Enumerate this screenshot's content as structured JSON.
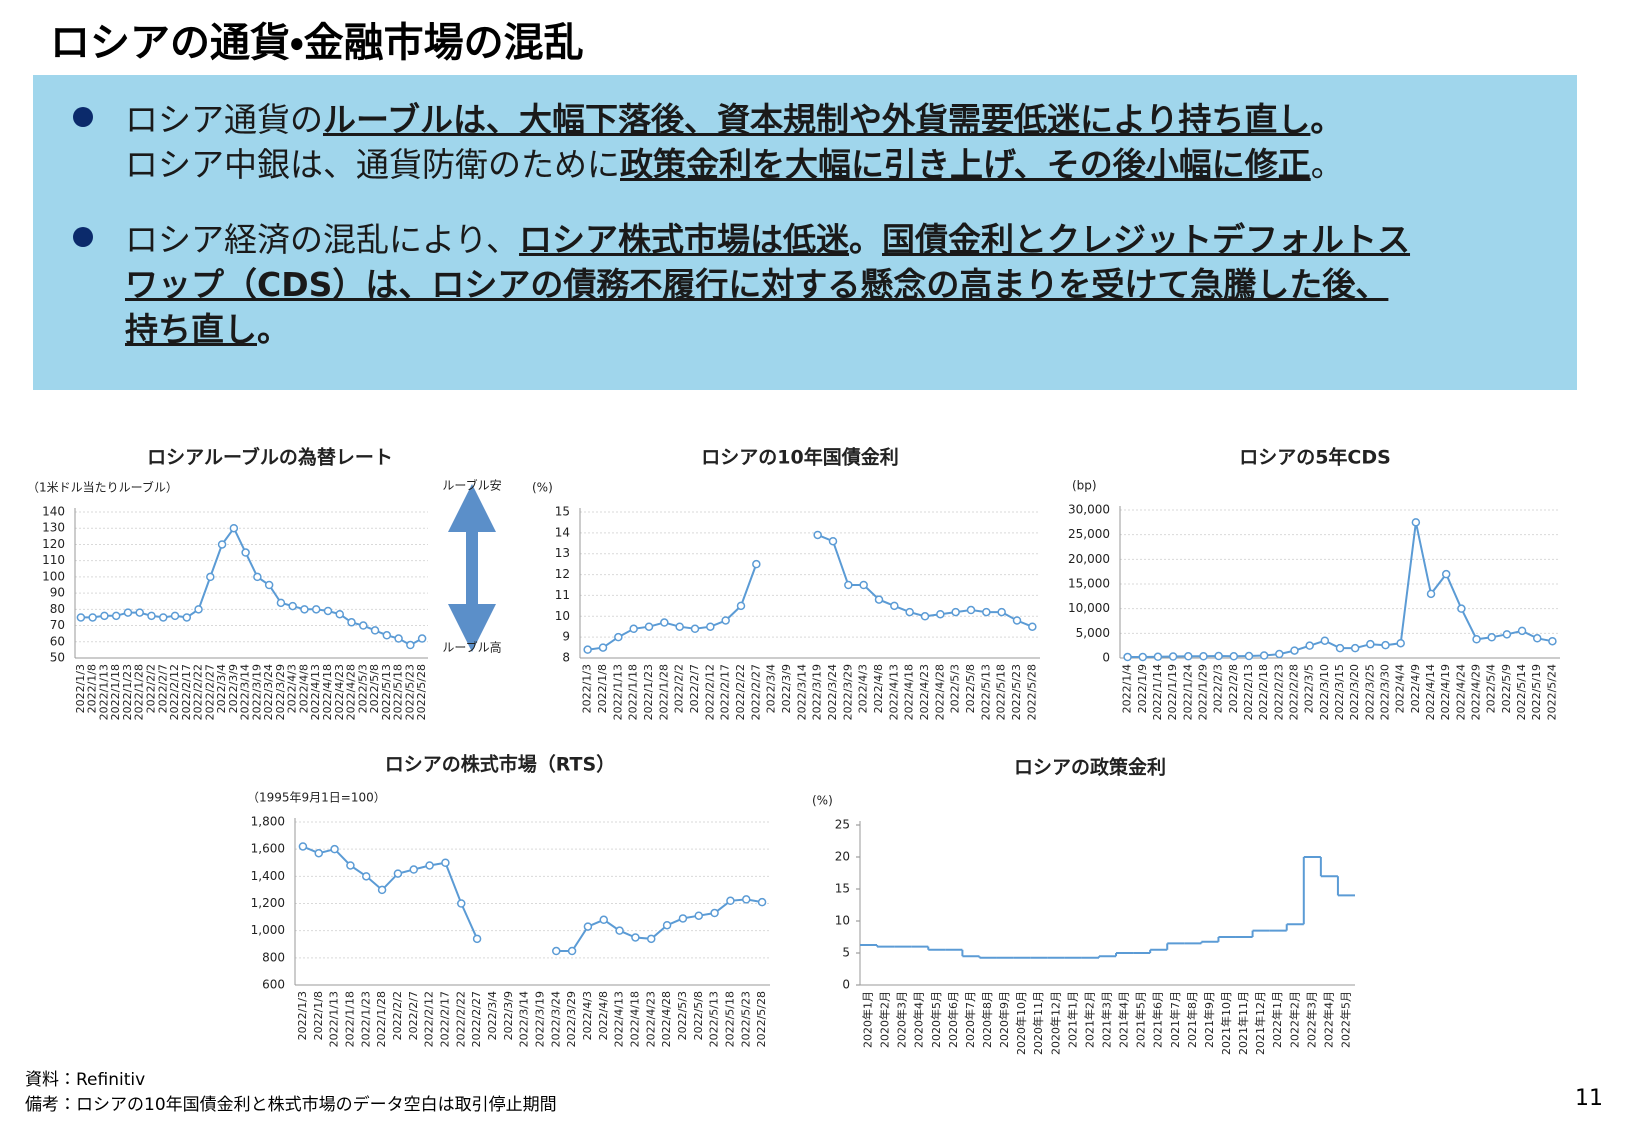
{
  "header": {
    "title": "ロシアの通貨・金融市場の混乱"
  },
  "bullets": [
    {
      "lines": [
        [
          {
            "text": "ロシア通貨の",
            "bold": false,
            "underline": false
          },
          {
            "text": "ルーブルは、大幅下落後、資本規制や外貨需要低迷により持ち直し",
            "bold": true,
            "underline": true
          },
          {
            "text": "。",
            "bold": true,
            "underline": false
          }
        ],
        [
          {
            "text": "ロシア中銀は、通貨防衛のために",
            "bold": false,
            "underline": false
          },
          {
            "text": "政策金利を大幅に引き上げ、その後小幅に修正",
            "bold": true,
            "underline": true
          },
          {
            "text": "。",
            "bold": false,
            "underline": false
          }
        ]
      ]
    },
    {
      "lines": [
        [
          {
            "text": "ロシア経済の混乱により、",
            "bold": false,
            "underline": false
          },
          {
            "text": "ロシア株式市場は低迷",
            "bold": true,
            "underline": true
          },
          {
            "text": "。",
            "bold": true,
            "underline": false
          },
          {
            "text": "国債金利とクレジットデフォルトス",
            "bold": true,
            "underline": true
          }
        ],
        [
          {
            "text": "ワップ（CDS）は、ロシアの債務不履行に対する懸念の高まりを受けて急騰した後、",
            "bold": true,
            "underline": true
          }
        ],
        [
          {
            "text": "持ち直し",
            "bold": true,
            "underline": true
          },
          {
            "text": "。",
            "bold": true,
            "underline": false
          }
        ]
      ]
    }
  ],
  "chart_data": [
    {
      "type": "line",
      "title": "ロシアルーブルの為替レート",
      "y_unit": "（1米ドル当たりルーブル）",
      "annotations": [
        "ルーブル安",
        "ルーブル高"
      ],
      "color": "#5b9bd5",
      "markers": true,
      "grid": true,
      "categories": [
        "2022/1/3",
        "2022/1/8",
        "2022/1/13",
        "2022/1/18",
        "2022/1/23",
        "2022/1/28",
        "2022/2/2",
        "2022/2/7",
        "2022/2/12",
        "2022/2/17",
        "2022/2/22",
        "2022/2/27",
        "2022/3/4",
        "2022/3/9",
        "2022/3/14",
        "2022/3/19",
        "2022/3/24",
        "2022/3/29",
        "2022/4/3",
        "2022/4/8",
        "2022/4/13",
        "2022/4/18",
        "2022/4/23",
        "2022/4/28",
        "2022/5/3",
        "2022/5/8",
        "2022/5/13",
        "2022/5/18",
        "2022/5/23",
        "2022/5/28"
      ],
      "values": [
        75,
        75,
        76,
        76,
        78,
        78,
        76,
        75,
        76,
        75,
        80,
        100,
        120,
        130,
        115,
        100,
        95,
        84,
        82,
        80,
        80,
        79,
        77,
        72,
        70,
        67,
        64,
        62,
        58,
        62
      ],
      "ylim": [
        50,
        140
      ],
      "yticks": [
        50,
        60,
        70,
        80,
        90,
        100,
        110,
        120,
        130,
        140
      ]
    },
    {
      "type": "line",
      "title": "ロシアの10年国債金利",
      "y_unit": "(%)",
      "color": "#5b9bd5",
      "markers": true,
      "grid": true,
      "categories": [
        "2022/1/3",
        "2022/1/8",
        "2022/1/13",
        "2022/1/18",
        "2022/1/23",
        "2022/1/28",
        "2022/2/2",
        "2022/2/7",
        "2022/2/12",
        "2022/2/17",
        "2022/2/22",
        "2022/2/27",
        "2022/3/4",
        "2022/3/9",
        "2022/3/14",
        "2022/3/19",
        "2022/3/24",
        "2022/3/29",
        "2022/4/3",
        "2022/4/8",
        "2022/4/13",
        "2022/4/18",
        "2022/4/23",
        "2022/4/28",
        "2022/5/3",
        "2022/5/8",
        "2022/5/13",
        "2022/5/18",
        "2022/5/23",
        "2022/5/28"
      ],
      "values": [
        8.4,
        8.5,
        9.0,
        9.4,
        9.5,
        9.7,
        9.5,
        9.4,
        9.5,
        9.8,
        10.5,
        12.5,
        null,
        null,
        null,
        13.9,
        13.6,
        11.5,
        11.5,
        10.8,
        10.5,
        10.2,
        10.0,
        10.1,
        10.2,
        10.3,
        10.2,
        10.2,
        9.8,
        9.5
      ],
      "ylim": [
        8,
        15
      ],
      "yticks": [
        8,
        9,
        10,
        11,
        12,
        13,
        14,
        15
      ]
    },
    {
      "type": "line",
      "title": "ロシアの5年CDS",
      "y_unit": "(bp)",
      "color": "#5b9bd5",
      "markers": true,
      "grid": true,
      "categories": [
        "2022/1/4",
        "2022/1/9",
        "2022/1/14",
        "2022/1/19",
        "2022/1/24",
        "2022/1/29",
        "2022/2/3",
        "2022/2/8",
        "2022/2/13",
        "2022/2/18",
        "2022/2/23",
        "2022/2/28",
        "2022/3/5",
        "2022/3/10",
        "2022/3/15",
        "2022/3/20",
        "2022/3/25",
        "2022/3/30",
        "2022/4/4",
        "2022/4/9",
        "2022/4/14",
        "2022/4/19",
        "2022/4/24",
        "2022/4/29",
        "2022/5/4",
        "2022/5/9",
        "2022/5/14",
        "2022/5/19",
        "2022/5/24"
      ],
      "values": [
        200,
        200,
        250,
        300,
        350,
        350,
        400,
        350,
        400,
        500,
        800,
        1500,
        2500,
        3500,
        2000,
        2000,
        2800,
        2600,
        3000,
        27500,
        13000,
        17000,
        10000,
        3800,
        4200,
        4800,
        5500,
        4000,
        3400
      ],
      "ylim": [
        0,
        30000
      ],
      "yticks": [
        0,
        {
          "value": 5000,
          "label": "5,000"
        },
        {
          "value": 10000,
          "label": "10,000"
        },
        {
          "value": 15000,
          "label": "15,000"
        },
        {
          "value": 20000,
          "label": "20,000"
        },
        {
          "value": 25000,
          "label": "25,000"
        },
        {
          "value": 30000,
          "label": "30,000"
        }
      ]
    },
    {
      "type": "line",
      "title": "ロシアの株式市場（RTS）",
      "y_unit": "（1995年9月1日=100）",
      "color": "#5b9bd5",
      "markers": true,
      "grid": true,
      "categories": [
        "2022/1/3",
        "2022/1/8",
        "2022/1/13",
        "2022/1/18",
        "2022/1/23",
        "2022/1/28",
        "2022/2/2",
        "2022/2/7",
        "2022/2/12",
        "2022/2/17",
        "2022/2/22",
        "2022/2/27",
        "2022/3/4",
        "2022/3/9",
        "2022/3/14",
        "2022/3/19",
        "2022/3/24",
        "2022/3/29",
        "2022/4/3",
        "2022/4/8",
        "2022/4/13",
        "2022/4/18",
        "2022/4/23",
        "2022/4/28",
        "2022/5/3",
        "2022/5/8",
        "2022/5/13",
        "2022/5/18",
        "2022/5/23",
        "2022/5/28"
      ],
      "values": [
        1620,
        1570,
        1600,
        1480,
        1400,
        1300,
        1420,
        1450,
        1480,
        1500,
        1200,
        940,
        null,
        null,
        null,
        null,
        850,
        850,
        1030,
        1080,
        1000,
        950,
        940,
        1040,
        1090,
        1110,
        1130,
        1220,
        1230,
        1210
      ],
      "ylim": [
        600,
        1800
      ],
      "yticks": [
        600,
        800,
        {
          "value": 1000,
          "label": "1,000"
        },
        {
          "value": 1200,
          "label": "1,200"
        },
        {
          "value": 1400,
          "label": "1,400"
        },
        {
          "value": 1600,
          "label": "1,600"
        },
        {
          "value": 1800,
          "label": "1,800"
        }
      ]
    },
    {
      "type": "step",
      "title": "ロシアの政策金利",
      "y_unit": "(%)",
      "color": "#5b9bd5",
      "markers": false,
      "grid": false,
      "categories": [
        "2020年1月",
        "2020年2月",
        "2020年3月",
        "2020年4月",
        "2020年5月",
        "2020年6月",
        "2020年7月",
        "2020年8月",
        "2020年9月",
        "2020年10月",
        "2020年11月",
        "2020年12月",
        "2021年1月",
        "2021年2月",
        "2021年3月",
        "2021年4月",
        "2021年5月",
        "2021年6月",
        "2021年7月",
        "2021年8月",
        "2021年9月",
        "2021年10月",
        "2021年11月",
        "2021年12月",
        "2022年1月",
        "2022年2月",
        "2022年3月",
        "2022年4月",
        "2022年5月"
      ],
      "values": [
        6.25,
        6.0,
        6.0,
        6.0,
        5.5,
        5.5,
        4.5,
        4.25,
        4.25,
        4.25,
        4.25,
        4.25,
        4.25,
        4.25,
        4.5,
        5.0,
        5.0,
        5.5,
        6.5,
        6.5,
        6.75,
        7.5,
        7.5,
        8.5,
        8.5,
        9.5,
        20,
        17,
        14
      ],
      "ylim": [
        0,
        25
      ],
      "yticks": [
        0,
        5,
        10,
        15,
        20,
        25
      ]
    }
  ],
  "footnotes": [
    "資料：Refinitiv",
    "備考：ロシアの10年国債金利と株式市場のデータ空白は取引停止期間"
  ],
  "page_number": "11"
}
